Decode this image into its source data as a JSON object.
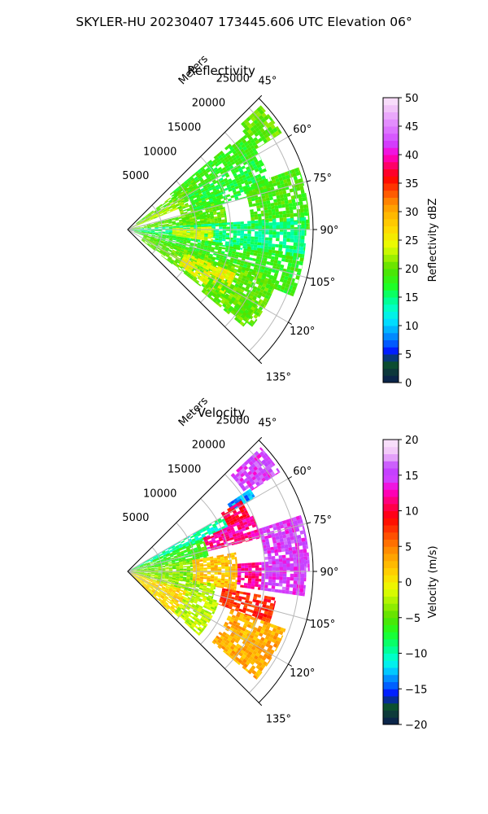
{
  "figure": {
    "suptitle": "SKYLER-HU  20230407  173445.606 UTC Elevation 06°"
  },
  "chart_data": [
    {
      "type": "heatmap",
      "projection": "polar-sector",
      "title": "Reflectivity",
      "radial_label": "Meters",
      "radial_ticks": [
        "5000",
        "10000",
        "15000",
        "20000",
        "25000"
      ],
      "radial_tick_values": [
        5000,
        10000,
        15000,
        20000,
        25000
      ],
      "radial_max": 27000,
      "azimuth_ticks": [
        "45°",
        "60°",
        "75°",
        "90°",
        "105°",
        "120°",
        "135°"
      ],
      "azimuth_tick_values": [
        45,
        60,
        75,
        90,
        105,
        120,
        135
      ],
      "grid": true,
      "colorbar": {
        "label": "Reflectivity dBZ",
        "min": 0,
        "max": 50,
        "tick_labels": [
          "0",
          "5",
          "10",
          "15",
          "20",
          "25",
          "30",
          "35",
          "40",
          "45",
          "50"
        ],
        "tick_values": [
          0,
          5,
          10,
          15,
          20,
          25,
          30,
          35,
          40,
          45,
          50
        ],
        "palette": [
          [
            0,
            "#0a1b50"
          ],
          [
            2,
            "#0d3a3a"
          ],
          [
            4,
            "#0b5a2a"
          ],
          [
            5,
            "#0000ff"
          ],
          [
            7,
            "#0060ff"
          ],
          [
            9,
            "#00a8ff"
          ],
          [
            11,
            "#00e8ff"
          ],
          [
            13,
            "#00ffc8"
          ],
          [
            15,
            "#00ff80"
          ],
          [
            17,
            "#20ff20"
          ],
          [
            20,
            "#55e000"
          ],
          [
            22,
            "#a0f000"
          ],
          [
            24,
            "#e8ff00"
          ],
          [
            27,
            "#ffd800"
          ],
          [
            30,
            "#ffb000"
          ],
          [
            32,
            "#ff8000"
          ],
          [
            34,
            "#ff4000"
          ],
          [
            36,
            "#ff0000"
          ],
          [
            38,
            "#ff0060"
          ],
          [
            40,
            "#ff00d0"
          ],
          [
            42,
            "#d040ff"
          ],
          [
            45,
            "#e080ff"
          ],
          [
            48,
            "#f0c0f8"
          ],
          [
            50,
            "#fbe8fb"
          ]
        ]
      },
      "field_regions": [
        {
          "az": [
            47,
            58
          ],
          "r": [
            22000,
            26500
          ],
          "value": 20
        },
        {
          "az": [
            50,
            60
          ],
          "r": [
            8000,
            22000
          ],
          "value": 18
        },
        {
          "az": [
            53,
            65
          ],
          "r": [
            1500,
            12000
          ],
          "value": 20
        },
        {
          "az": [
            60,
            68
          ],
          "r": [
            500,
            9000
          ],
          "value": 22
        },
        {
          "az": [
            66,
            88
          ],
          "r": [
            8000,
            14500
          ],
          "value": 20
        },
        {
          "az": [
            60,
            75
          ],
          "r": [
            10000,
            22000
          ],
          "value": 17
        },
        {
          "az": [
            70,
            90
          ],
          "r": [
            18000,
            26500
          ],
          "value": 19
        },
        {
          "az": [
            76,
            86
          ],
          "r": [
            300,
            12000
          ],
          "value": 20
        },
        {
          "az": [
            86,
            100
          ],
          "r": [
            300,
            26000
          ],
          "value": 15
        },
        {
          "az": [
            88,
            98
          ],
          "r": [
            6500,
            12500
          ],
          "value": 24
        },
        {
          "az": [
            98,
            112
          ],
          "r": [
            1000,
            26000
          ],
          "value": 18
        },
        {
          "az": [
            108,
            128
          ],
          "r": [
            2500,
            23000
          ],
          "value": 20
        },
        {
          "az": [
            112,
            125
          ],
          "r": [
            9000,
            17000
          ],
          "value": 25
        },
        {
          "az": [
            118,
            130
          ],
          "r": [
            14000,
            22000
          ],
          "value": 20
        }
      ]
    },
    {
      "type": "heatmap",
      "projection": "polar-sector",
      "title": "Velocity",
      "radial_label": "Meters",
      "radial_ticks": [
        "5000",
        "10000",
        "15000",
        "20000",
        "25000"
      ],
      "radial_tick_values": [
        5000,
        10000,
        15000,
        20000,
        25000
      ],
      "radial_max": 27000,
      "azimuth_ticks": [
        "45°",
        "60°",
        "75°",
        "90°",
        "105°",
        "120°",
        "135°"
      ],
      "azimuth_tick_values": [
        45,
        60,
        75,
        90,
        105,
        120,
        135
      ],
      "grid": true,
      "colorbar": {
        "label": "Velocity (m/s)",
        "min": -20,
        "max": 20,
        "tick_labels": [
          "−20",
          "−15",
          "−10",
          "−5",
          "0",
          "5",
          "10",
          "15",
          "20"
        ],
        "tick_values": [
          -20,
          -15,
          -10,
          -5,
          0,
          5,
          10,
          15,
          20
        ],
        "palette": [
          [
            -20,
            "#0a1b50"
          ],
          [
            -18.5,
            "#0d3a3a"
          ],
          [
            -17,
            "#0b5a2a"
          ],
          [
            -16,
            "#0000ff"
          ],
          [
            -14.5,
            "#0060ff"
          ],
          [
            -13,
            "#00a8ff"
          ],
          [
            -12,
            "#00e8ff"
          ],
          [
            -10.5,
            "#00ffc8"
          ],
          [
            -9,
            "#00ff80"
          ],
          [
            -7,
            "#20ff20"
          ],
          [
            -5,
            "#55e000"
          ],
          [
            -3,
            "#a0f000"
          ],
          [
            -1,
            "#e8ff00"
          ],
          [
            1,
            "#ffd800"
          ],
          [
            3,
            "#ffb000"
          ],
          [
            5,
            "#ff8000"
          ],
          [
            7,
            "#ff4000"
          ],
          [
            9,
            "#ff0000"
          ],
          [
            11,
            "#ff0060"
          ],
          [
            13,
            "#ff00d0"
          ],
          [
            14.5,
            "#d040ff"
          ],
          [
            16,
            "#c040ff"
          ],
          [
            18,
            "#f0c0f8"
          ],
          [
            20,
            "#fbe8fb"
          ]
        ]
      },
      "field_regions": [
        {
          "az": [
            47,
            57
          ],
          "r": [
            20500,
            26500
          ],
          "value": 15
        },
        {
          "az": [
            56,
            60
          ],
          "r": [
            17500,
            21500
          ],
          "value": -13
        },
        {
          "az": [
            58,
            66
          ],
          "r": [
            16000,
            19500
          ],
          "value": 10
        },
        {
          "az": [
            60,
            68
          ],
          "r": [
            500,
            16000
          ],
          "value": -10
        },
        {
          "az": [
            66,
            80
          ],
          "r": [
            300,
            12000
          ],
          "value": -6
        },
        {
          "az": [
            66,
            76
          ],
          "r": [
            12000,
            20000
          ],
          "value": 12
        },
        {
          "az": [
            72,
            90
          ],
          "r": [
            20000,
            26500
          ],
          "value": 15
        },
        {
          "az": [
            80,
            100
          ],
          "r": [
            300,
            9500
          ],
          "value": -4
        },
        {
          "az": [
            80,
            100
          ],
          "r": [
            9500,
            16000
          ],
          "value": 2
        },
        {
          "az": [
            86,
            98
          ],
          "r": [
            16000,
            19500
          ],
          "value": 12
        },
        {
          "az": [
            86,
            98
          ],
          "r": [
            19500,
            26000
          ],
          "value": 15
        },
        {
          "az": [
            98,
            110
          ],
          "r": [
            300,
            13000
          ],
          "value": -3
        },
        {
          "az": [
            100,
            110
          ],
          "r": [
            14000,
            22000
          ],
          "value": 8
        },
        {
          "az": [
            108,
            134
          ],
          "r": [
            300,
            9000
          ],
          "value": 1
        },
        {
          "az": [
            108,
            132
          ],
          "r": [
            9000,
            14000
          ],
          "value": -2
        },
        {
          "az": [
            110,
            130
          ],
          "r": [
            16000,
            24500
          ],
          "value": 3
        }
      ]
    }
  ]
}
